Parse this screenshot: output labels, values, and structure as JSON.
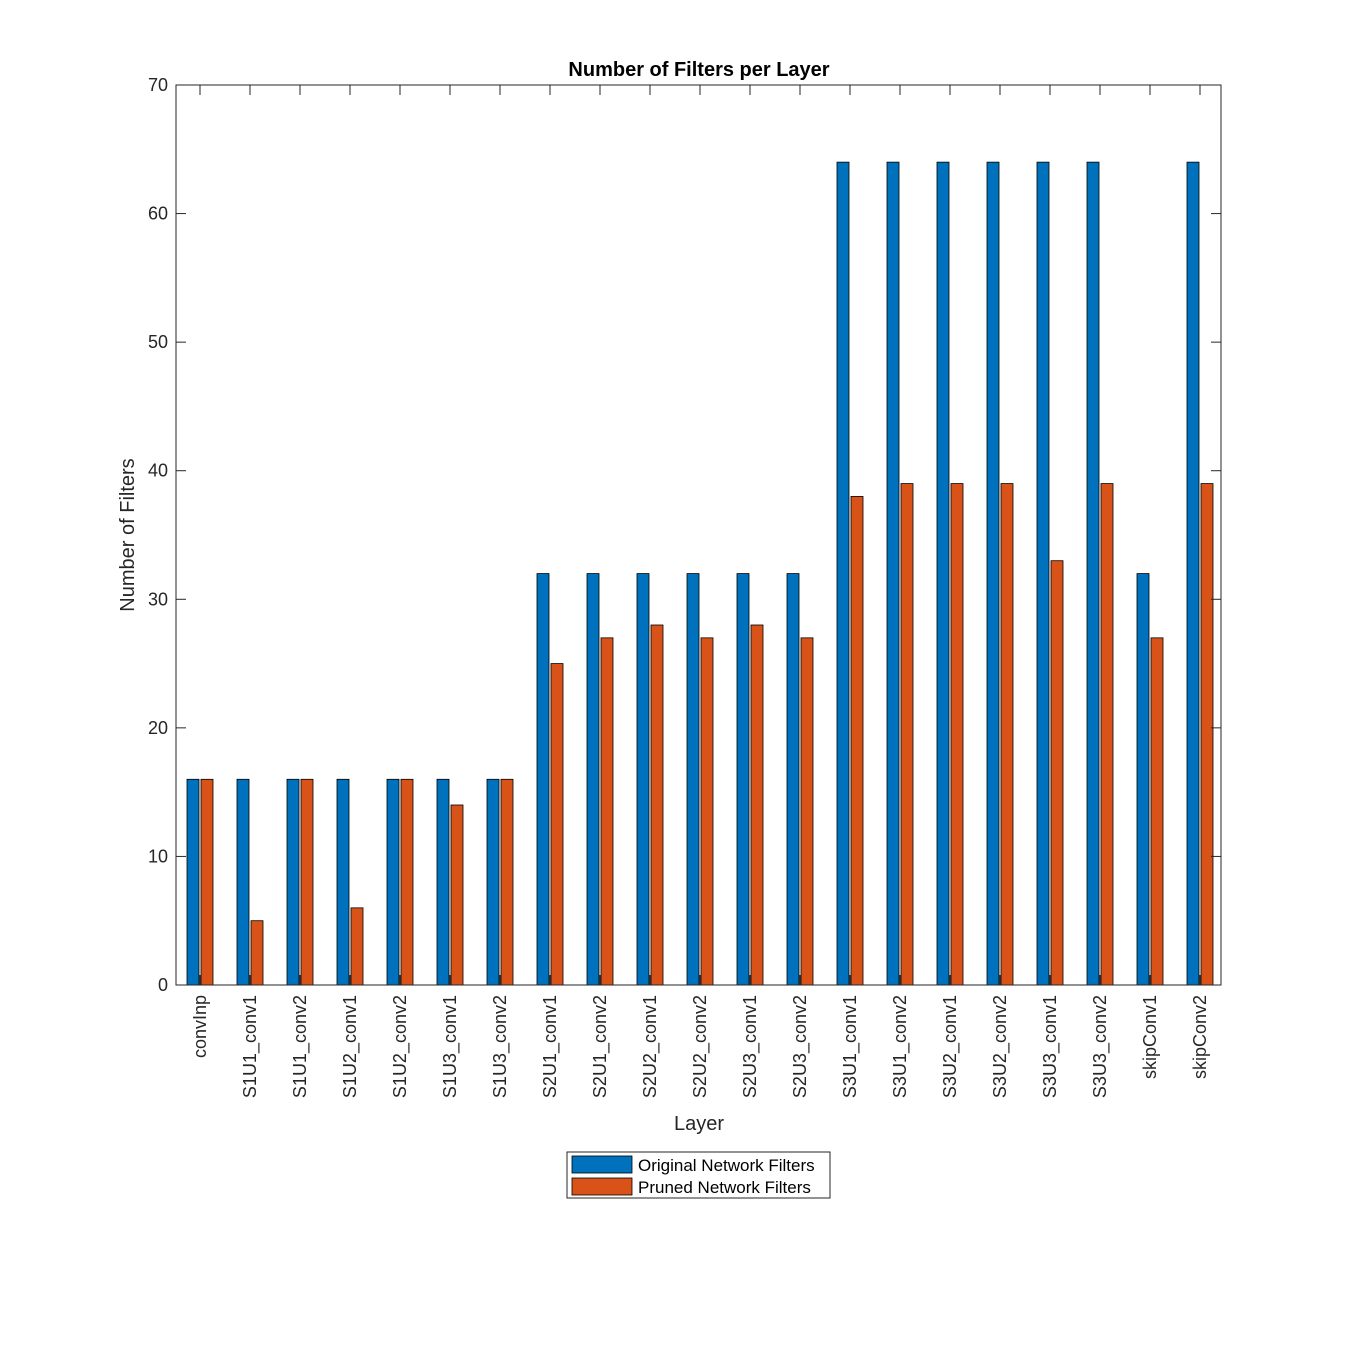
{
  "chart_data": {
    "type": "bar",
    "title": "Number of Filters per Layer",
    "xlabel": "Layer",
    "ylabel": "Number of Filters",
    "ylim": [
      0,
      70
    ],
    "yticks": [
      0,
      10,
      20,
      30,
      40,
      50,
      60,
      70
    ],
    "grid": false,
    "legend_position": "bottom-center",
    "categories": [
      "convInp",
      "S1U1_conv1",
      "S1U1_conv2",
      "S1U2_conv1",
      "S1U2_conv2",
      "S1U3_conv1",
      "S1U3_conv2",
      "S2U1_conv1",
      "S2U1_conv2",
      "S2U2_conv1",
      "S2U2_conv2",
      "S2U3_conv1",
      "S2U3_conv2",
      "S3U1_conv1",
      "S3U1_conv2",
      "S3U2_conv1",
      "S3U2_conv2",
      "S3U3_conv1",
      "S3U3_conv2",
      "skipConv1",
      "skipConv2"
    ],
    "series": [
      {
        "name": "Original Network Filters",
        "color": "#0072BD",
        "values": [
          16,
          16,
          16,
          16,
          16,
          16,
          16,
          32,
          32,
          32,
          32,
          32,
          32,
          64,
          64,
          64,
          64,
          64,
          64,
          32,
          64
        ]
      },
      {
        "name": "Pruned Network Filters",
        "color": "#D95319",
        "values": [
          16,
          5,
          16,
          6,
          16,
          14,
          16,
          25,
          27,
          28,
          27,
          28,
          27,
          38,
          39,
          39,
          39,
          33,
          39,
          27,
          39
        ]
      }
    ]
  }
}
